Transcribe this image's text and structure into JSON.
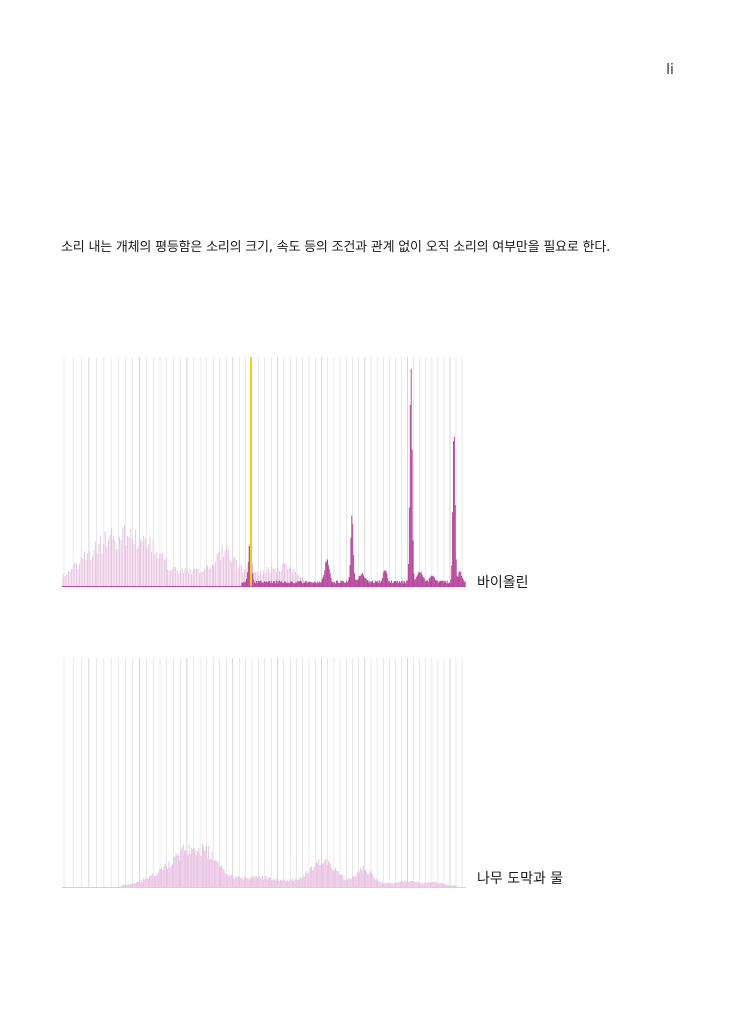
{
  "page": {
    "number": "li"
  },
  "statement": "소리 내는 개체의 평등함은 소리의 크기, 속도 등의 조건과 관계 없이 오직 소리의 여부만을 필요로 한다.",
  "spectra": [
    {
      "label": "바이올린",
      "colors": {
        "soft": "#e7bfe2",
        "strong": "#b84a9e",
        "gridline": "#d2d2d2",
        "highlight": "#ecd21c"
      }
    },
    {
      "label": "나무 도막과 물",
      "colors": {
        "soft": "#e9c3e4",
        "gridline": "#d2d2d2"
      }
    }
  ]
}
